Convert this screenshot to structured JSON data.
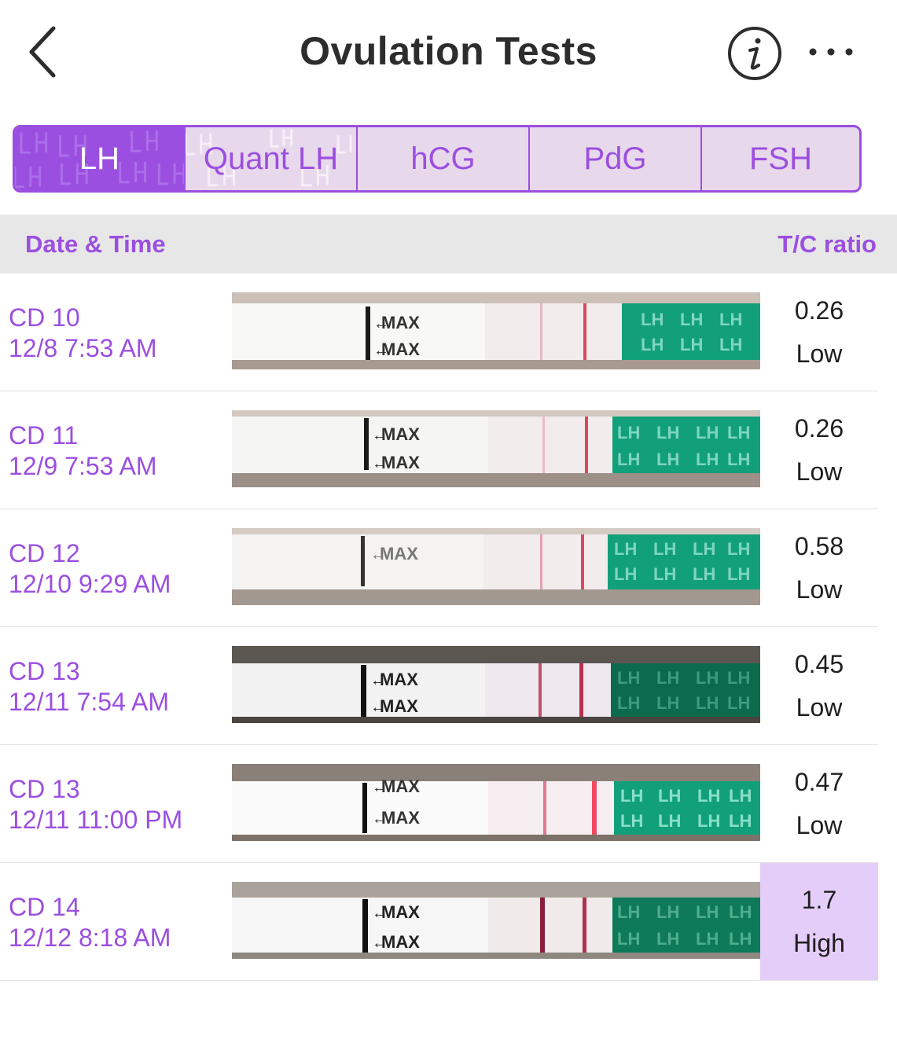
{
  "header": {
    "title": "Ovulation Tests",
    "back_icon": "chevron-left-icon",
    "info_icon": "info-circle-icon",
    "more_icon": "more-horizontal-icon"
  },
  "tabs": [
    {
      "label": "LH",
      "active": true
    },
    {
      "label": "Quant LH",
      "active": false
    },
    {
      "label": "hCG",
      "active": false
    },
    {
      "label": "PdG",
      "active": false
    },
    {
      "label": "FSH",
      "active": false
    }
  ],
  "columns": {
    "date_time": "Date & Time",
    "ratio": "T/C ratio"
  },
  "strip_text": {
    "max": "MAX",
    "lh": "LH"
  },
  "rows": [
    {
      "cd": "CD 10",
      "datetime": "12/8 7:53 AM",
      "ratio": "0.26",
      "level": "Low"
    },
    {
      "cd": "CD 11",
      "datetime": "12/9 7:53 AM",
      "ratio": "0.26",
      "level": "Low"
    },
    {
      "cd": "CD 12",
      "datetime": "12/10 9:29 AM",
      "ratio": "0.58",
      "level": "Low"
    },
    {
      "cd": "CD 13",
      "datetime": "12/11 7:54 AM",
      "ratio": "0.45",
      "level": "Low"
    },
    {
      "cd": "CD 13",
      "datetime": "12/11 11:00 PM",
      "ratio": "0.47",
      "level": "Low"
    },
    {
      "cd": "CD 14",
      "datetime": "12/12 8:18 AM",
      "ratio": "1.7",
      "level": "High"
    }
  ],
  "colors": {
    "accent": "#9b4fe0",
    "tab_background": "#e8d8ec",
    "header_background": "#e7e7e7",
    "high_highlight": "#e5cdfa",
    "strip_green": "#12a07a",
    "strip_green_dark": "#0c6a4d",
    "line_red": "#d9485f"
  }
}
